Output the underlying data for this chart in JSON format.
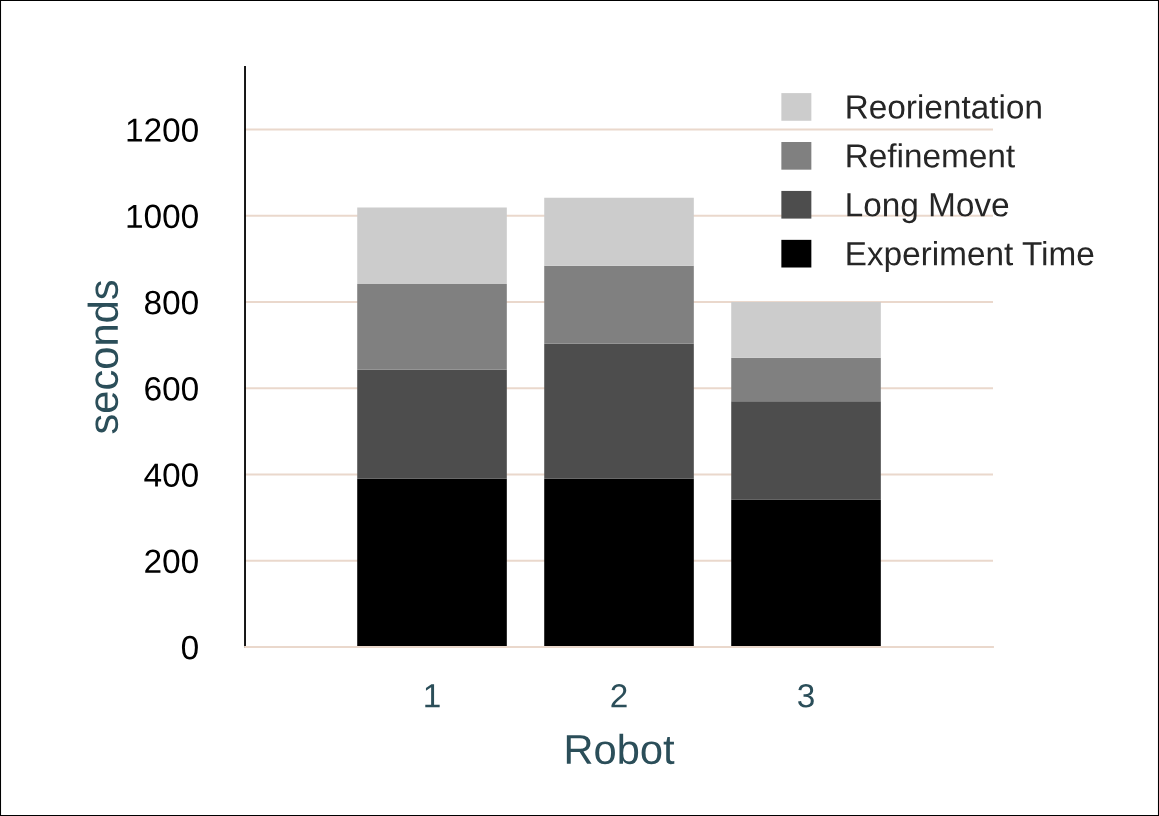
{
  "chart_data": {
    "type": "bar",
    "stacked": true,
    "xlabel": "Robot",
    "ylabel": "seconds",
    "categories": [
      "1",
      "2",
      "3"
    ],
    "series": [
      {
        "name": "Experiment Time",
        "color": "#000000",
        "values": [
          390,
          390,
          342
        ]
      },
      {
        "name": "Long Move",
        "color": "#4d4d4d",
        "values": [
          253,
          313,
          228
        ]
      },
      {
        "name": "Refinement",
        "color": "#808080",
        "values": [
          199,
          181,
          101
        ]
      },
      {
        "name": "Reorientation",
        "color": "#cccccc",
        "values": [
          177,
          158,
          129
        ]
      }
    ],
    "ylim": [
      0,
      1345
    ],
    "yticks": [
      0,
      200,
      400,
      600,
      800,
      1000,
      1200
    ],
    "grid": "y",
    "legend": "top right"
  }
}
